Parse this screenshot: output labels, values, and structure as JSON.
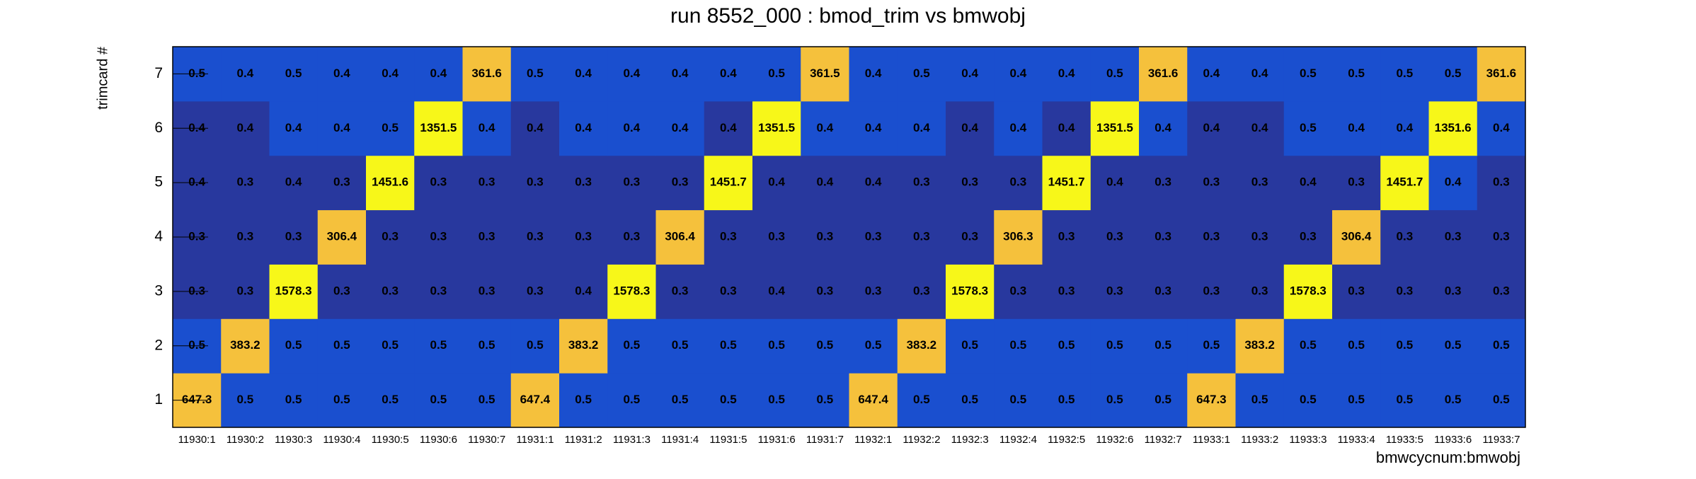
{
  "chart_data": {
    "type": "heatmap",
    "title": "run 8552_000 : bmod_trim vs bmwobj",
    "x_label": "bmwcycnum:bmwobj",
    "y_label": "trimcard #",
    "categories": [
      "11930:1",
      "11930:2",
      "11930:3",
      "11930:4",
      "11930:5",
      "11930:6",
      "11930:7",
      "11931:1",
      "11931:2",
      "11931:3",
      "11931:4",
      "11931:5",
      "11931:6",
      "11931:7",
      "11932:1",
      "11932:2",
      "11932:3",
      "11932:4",
      "11932:5",
      "11932:6",
      "11932:7",
      "11933:1",
      "11933:2",
      "11933:3",
      "11933:4",
      "11933:5",
      "11933:6",
      "11933:7"
    ],
    "y_categories": [
      1,
      2,
      3,
      4,
      5,
      6,
      7
    ],
    "values": [
      [
        647.3,
        0.5,
        0.5,
        0.5,
        0.5,
        0.5,
        0.5,
        647.4,
        0.5,
        0.5,
        0.5,
        0.5,
        0.5,
        0.5,
        647.4,
        0.5,
        0.5,
        0.5,
        0.5,
        0.5,
        0.5,
        647.3,
        0.5,
        0.5,
        0.5,
        0.5,
        0.5,
        0.5
      ],
      [
        0.5,
        383.2,
        0.5,
        0.5,
        0.5,
        0.5,
        0.5,
        0.5,
        383.2,
        0.5,
        0.5,
        0.5,
        0.5,
        0.5,
        0.5,
        383.2,
        0.5,
        0.5,
        0.5,
        0.5,
        0.5,
        0.5,
        383.2,
        0.5,
        0.5,
        0.5,
        0.5,
        0.5
      ],
      [
        0.3,
        0.3,
        1578.3,
        0.3,
        0.3,
        0.3,
        0.3,
        0.3,
        0.4,
        1578.3,
        0.3,
        0.3,
        0.4,
        0.3,
        0.3,
        0.3,
        1578.3,
        0.3,
        0.3,
        0.3,
        0.3,
        0.3,
        0.3,
        1578.3,
        0.3,
        0.3,
        0.3,
        0.3
      ],
      [
        0.3,
        0.3,
        0.3,
        306.4,
        0.3,
        0.3,
        0.3,
        0.3,
        0.3,
        0.3,
        306.4,
        0.3,
        0.3,
        0.3,
        0.3,
        0.3,
        0.3,
        306.3,
        0.3,
        0.3,
        0.3,
        0.3,
        0.3,
        0.3,
        306.4,
        0.3,
        0.3,
        0.3
      ],
      [
        0.4,
        0.3,
        0.4,
        0.3,
        1451.6,
        0.3,
        0.3,
        0.3,
        0.3,
        0.3,
        0.3,
        1451.7,
        0.4,
        0.4,
        0.4,
        0.3,
        0.3,
        0.3,
        1451.7,
        0.4,
        0.3,
        0.3,
        0.3,
        0.4,
        0.3,
        1451.7,
        0.4,
        0.3
      ],
      [
        0.4,
        0.4,
        0.4,
        0.4,
        0.5,
        1351.5,
        0.4,
        0.4,
        0.4,
        0.4,
        0.4,
        0.4,
        1351.5,
        0.4,
        0.4,
        0.4,
        0.4,
        0.4,
        0.4,
        1351.5,
        0.4,
        0.4,
        0.4,
        0.5,
        0.4,
        0.4,
        1351.6,
        0.4
      ],
      [
        0.5,
        0.4,
        0.5,
        0.4,
        0.4,
        0.4,
        361.6,
        0.5,
        0.4,
        0.4,
        0.4,
        0.4,
        0.5,
        361.5,
        0.4,
        0.5,
        0.4,
        0.4,
        0.4,
        0.5,
        361.6,
        0.4,
        0.4,
        0.5,
        0.5,
        0.5,
        0.5,
        361.6
      ]
    ],
    "colors": [
      [
        "#f5c13c",
        "#1a4fcf",
        "#1a4fcf",
        "#1a4fcf",
        "#1a4fcf",
        "#1a4fcf",
        "#1a4fcf",
        "#f5c13c",
        "#1a4fcf",
        "#1a4fcf",
        "#1a4fcf",
        "#1a4fcf",
        "#1a4fcf",
        "#1a4fcf",
        "#f5c13c",
        "#1a4fcf",
        "#1a4fcf",
        "#1a4fcf",
        "#1a4fcf",
        "#1a4fcf",
        "#1a4fcf",
        "#f5c13c",
        "#1a4fcf",
        "#1a4fcf",
        "#1a4fcf",
        "#1a4fcf",
        "#1a4fcf",
        "#1a4fcf"
      ],
      [
        "#1a4fcf",
        "#f5c13c",
        "#1a4fcf",
        "#1a4fcf",
        "#1a4fcf",
        "#1a4fcf",
        "#1a4fcf",
        "#1a4fcf",
        "#f5c13c",
        "#1a4fcf",
        "#1a4fcf",
        "#1a4fcf",
        "#1a4fcf",
        "#1a4fcf",
        "#1a4fcf",
        "#f5c13c",
        "#1a4fcf",
        "#1a4fcf",
        "#1a4fcf",
        "#1a4fcf",
        "#1a4fcf",
        "#1a4fcf",
        "#f5c13c",
        "#1a4fcf",
        "#1a4fcf",
        "#1a4fcf",
        "#1a4fcf",
        "#1a4fcf"
      ],
      [
        "#28389e",
        "#28389e",
        "#f7f719",
        "#28389e",
        "#28389e",
        "#28389e",
        "#28389e",
        "#28389e",
        "#28389e",
        "#f7f719",
        "#28389e",
        "#28389e",
        "#28389e",
        "#28389e",
        "#28389e",
        "#28389e",
        "#f7f719",
        "#28389e",
        "#28389e",
        "#28389e",
        "#28389e",
        "#28389e",
        "#28389e",
        "#f7f719",
        "#28389e",
        "#28389e",
        "#28389e",
        "#28389e"
      ],
      [
        "#28389e",
        "#28389e",
        "#28389e",
        "#f5c13c",
        "#28389e",
        "#28389e",
        "#28389e",
        "#28389e",
        "#28389e",
        "#28389e",
        "#f5c13c",
        "#28389e",
        "#28389e",
        "#28389e",
        "#28389e",
        "#28389e",
        "#28389e",
        "#f5c13c",
        "#28389e",
        "#28389e",
        "#28389e",
        "#28389e",
        "#28389e",
        "#28389e",
        "#f5c13c",
        "#28389e",
        "#28389e",
        "#28389e"
      ],
      [
        "#28389e",
        "#28389e",
        "#28389e",
        "#28389e",
        "#f7f719",
        "#28389e",
        "#28389e",
        "#28389e",
        "#28389e",
        "#28389e",
        "#28389e",
        "#f7f719",
        "#28389e",
        "#28389e",
        "#28389e",
        "#28389e",
        "#28389e",
        "#28389e",
        "#f7f719",
        "#28389e",
        "#28389e",
        "#28389e",
        "#28389e",
        "#28389e",
        "#28389e",
        "#f7f719",
        "#1a4fcf",
        "#28389e"
      ],
      [
        "#28389e",
        "#28389e",
        "#1a4fcf",
        "#1a4fcf",
        "#1a4fcf",
        "#f7f719",
        "#1a4fcf",
        "#28389e",
        "#1a4fcf",
        "#1a4fcf",
        "#1a4fcf",
        "#28389e",
        "#f7f719",
        "#1a4fcf",
        "#1a4fcf",
        "#1a4fcf",
        "#28389e",
        "#1a4fcf",
        "#28389e",
        "#f7f719",
        "#1a4fcf",
        "#28389e",
        "#28389e",
        "#1a4fcf",
        "#1a4fcf",
        "#1a4fcf",
        "#f7f719",
        "#1a4fcf"
      ],
      [
        "#1a4fcf",
        "#1a4fcf",
        "#1a4fcf",
        "#1a4fcf",
        "#1a4fcf",
        "#1a4fcf",
        "#f5c13c",
        "#1a4fcf",
        "#1a4fcf",
        "#1a4fcf",
        "#1a4fcf",
        "#1a4fcf",
        "#1a4fcf",
        "#f5c13c",
        "#1a4fcf",
        "#1a4fcf",
        "#1a4fcf",
        "#1a4fcf",
        "#1a4fcf",
        "#1a4fcf",
        "#f5c13c",
        "#1a4fcf",
        "#1a4fcf",
        "#1a4fcf",
        "#1a4fcf",
        "#1a4fcf",
        "#1a4fcf",
        "#f5c13c"
      ]
    ]
  }
}
